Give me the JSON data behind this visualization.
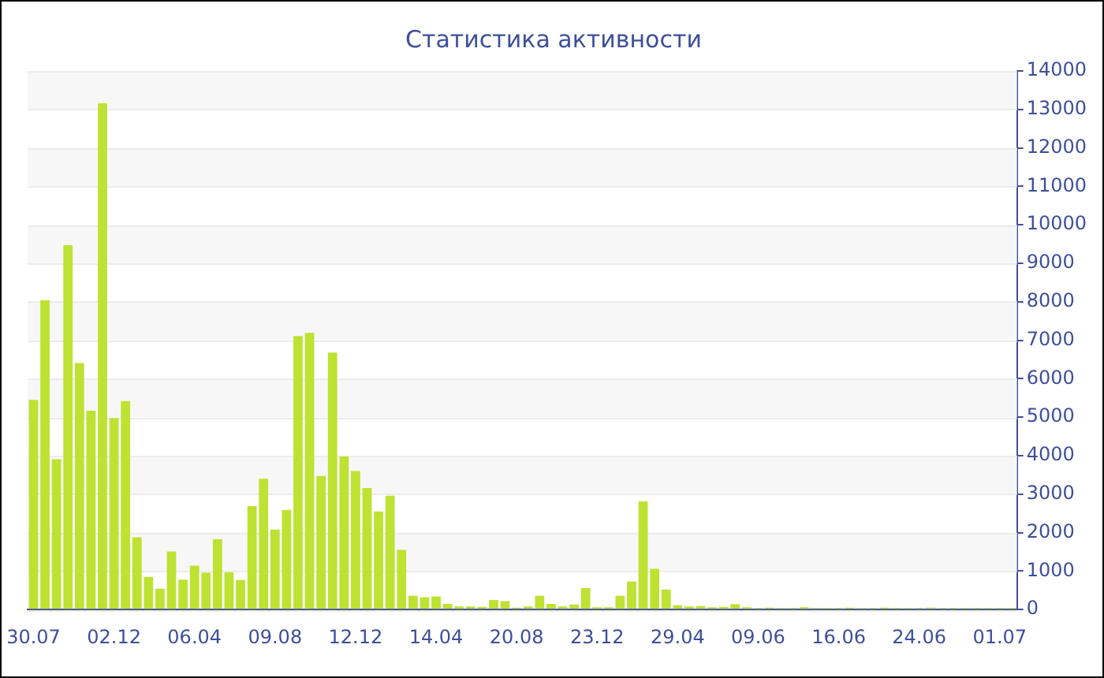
{
  "chart_data": {
    "type": "bar",
    "title": "Статистика активности",
    "categories": [
      "30.07",
      null,
      null,
      null,
      null,
      null,
      null,
      "02.12",
      null,
      null,
      null,
      null,
      null,
      null,
      "06.04",
      null,
      null,
      null,
      null,
      null,
      null,
      "09.08",
      null,
      null,
      null,
      null,
      null,
      null,
      "12.12",
      null,
      null,
      null,
      null,
      null,
      null,
      "14.04",
      null,
      null,
      null,
      null,
      null,
      null,
      "20.08",
      null,
      null,
      null,
      null,
      null,
      null,
      "23.12",
      null,
      null,
      null,
      null,
      null,
      null,
      "29.04",
      null,
      null,
      null,
      null,
      null,
      null,
      "09.06",
      null,
      null,
      null,
      null,
      null,
      null,
      "16.06",
      null,
      null,
      null,
      null,
      null,
      null,
      "24.06",
      null,
      null,
      null,
      null,
      null,
      null,
      "01.07",
      null
    ],
    "series": [
      {
        "color": "#bde232",
        "values": [
          5450,
          8040,
          3910,
          9470,
          6410,
          5170,
          13160,
          4980,
          5420,
          1880,
          850,
          540,
          1510,
          780,
          1140,
          960,
          1830,
          970,
          770,
          2690,
          3400,
          2080,
          2590,
          7110,
          7190,
          3470,
          6680,
          3980,
          3600,
          3160,
          2550,
          2960,
          1550,
          360,
          320,
          340,
          150,
          80,
          80,
          70,
          250,
          220,
          50,
          80,
          360,
          150,
          80,
          130,
          560,
          60,
          60,
          360,
          730,
          2810,
          1060,
          520,
          110,
          80,
          90,
          60,
          70,
          140,
          60,
          40,
          50,
          40,
          40,
          60,
          40,
          40,
          40,
          50,
          40,
          40,
          50,
          40,
          40,
          40,
          50,
          40,
          40,
          40,
          40,
          40,
          40,
          40
        ]
      }
    ],
    "ylim": [
      0,
      14000
    ],
    "yticks": [
      0,
      1000,
      2000,
      3000,
      4000,
      5000,
      6000,
      7000,
      8000,
      9000,
      10000,
      11000,
      12000,
      13000,
      14000
    ],
    "grid": "y"
  }
}
